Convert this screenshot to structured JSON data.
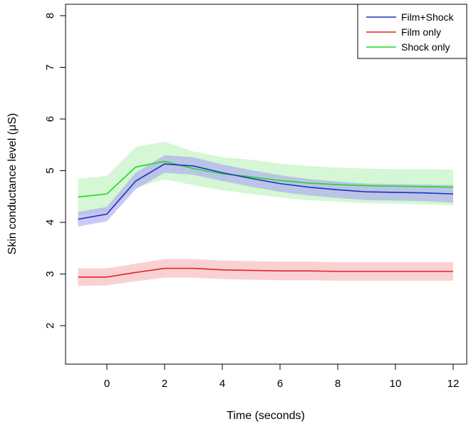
{
  "chart_data": {
    "type": "line",
    "title": "",
    "xlabel": "Time (seconds)",
    "ylabel": "Skin conductance level (μS)",
    "xlim": [
      -1,
      12
    ],
    "ylim": [
      1.5,
      8.2
    ],
    "x_ticks": [
      0,
      2,
      4,
      6,
      8,
      10,
      12
    ],
    "x_tick_labels": [
      "0",
      "2",
      "4",
      "6",
      "8",
      "10",
      "12"
    ],
    "y_ticks": [
      2,
      3,
      4,
      5,
      6,
      7,
      8
    ],
    "y_tick_labels": [
      "2",
      "3",
      "4",
      "5",
      "6",
      "7",
      "8"
    ],
    "legend_position": "top-right",
    "x": [
      -1,
      0,
      1,
      2,
      3,
      4,
      5,
      6,
      7,
      8,
      9,
      10,
      11,
      12
    ],
    "series": [
      {
        "name": "Film+Shock",
        "color": "#1f2fbf",
        "band_color": "#a9a4f2",
        "values": [
          4.06,
          4.16,
          4.8,
          5.13,
          5.09,
          4.96,
          4.85,
          4.75,
          4.68,
          4.63,
          4.59,
          4.58,
          4.57,
          4.55
        ],
        "lower": [
          3.92,
          4.02,
          4.64,
          4.96,
          4.92,
          4.8,
          4.69,
          4.59,
          4.52,
          4.47,
          4.43,
          4.42,
          4.41,
          4.38
        ],
        "upper": [
          4.2,
          4.3,
          4.96,
          5.3,
          5.26,
          5.12,
          5.01,
          4.91,
          4.84,
          4.79,
          4.75,
          4.74,
          4.73,
          4.72
        ]
      },
      {
        "name": "Film only",
        "color": "#e0262a",
        "band_color": "#f7b2b4",
        "values": [
          2.94,
          2.94,
          3.03,
          3.11,
          3.11,
          3.08,
          3.07,
          3.06,
          3.06,
          3.05,
          3.05,
          3.05,
          3.05,
          3.05
        ],
        "lower": [
          2.77,
          2.78,
          2.86,
          2.93,
          2.93,
          2.9,
          2.89,
          2.88,
          2.88,
          2.87,
          2.87,
          2.87,
          2.87,
          2.87
        ],
        "upper": [
          3.11,
          3.11,
          3.2,
          3.29,
          3.29,
          3.26,
          3.25,
          3.24,
          3.24,
          3.23,
          3.23,
          3.23,
          3.23,
          3.23
        ]
      },
      {
        "name": "Shock only",
        "color": "#22d822",
        "band_color": "#b9f2b9",
        "values": [
          4.49,
          4.55,
          5.07,
          5.18,
          5.04,
          4.94,
          4.88,
          4.81,
          4.76,
          4.73,
          4.71,
          4.7,
          4.69,
          4.68
        ],
        "lower": [
          4.14,
          4.19,
          4.68,
          4.83,
          4.72,
          4.62,
          4.55,
          4.48,
          4.43,
          4.4,
          4.37,
          4.36,
          4.35,
          4.33
        ],
        "upper": [
          4.84,
          4.9,
          5.46,
          5.56,
          5.37,
          5.26,
          5.21,
          5.14,
          5.09,
          5.06,
          5.04,
          5.03,
          5.03,
          5.02
        ]
      }
    ]
  }
}
